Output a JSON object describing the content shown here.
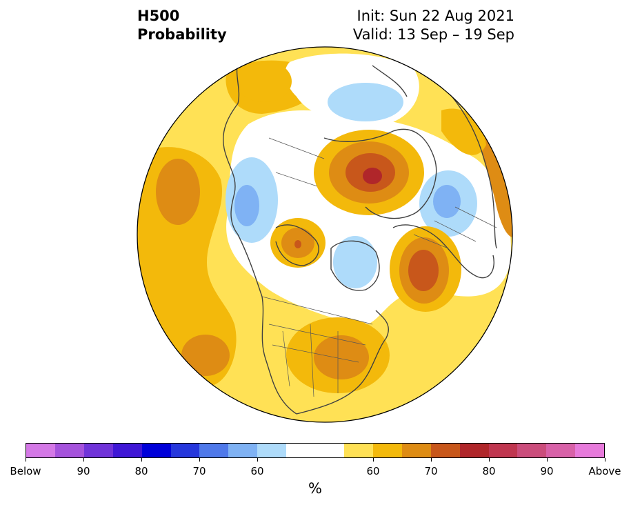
{
  "header": {
    "variable": "H500",
    "product": "Probability",
    "init": "Init: Sun 22 Aug 2021",
    "valid": "Valid: 13 Sep – 19 Sep"
  },
  "colorbar": {
    "unit": "%",
    "colors": [
      "#d478e6",
      "#a552dc",
      "#7033d9",
      "#3f17d6",
      "#0000d9",
      "#2637dc",
      "#4f79ea",
      "#7fb2f4",
      "#aedbfa",
      "#ffffff",
      "#ffffff",
      "#ffe155",
      "#f3b90b",
      "#de8c14",
      "#c8571b",
      "#b0262a",
      "#c03650",
      "#cb4d7c",
      "#d861a8",
      "#e77adb"
    ],
    "labels": [
      {
        "text": "Below",
        "idx": 0
      },
      {
        "text": "90",
        "idx": 2
      },
      {
        "text": "80",
        "idx": 4
      },
      {
        "text": "70",
        "idx": 6
      },
      {
        "text": "60",
        "idx": 8
      },
      {
        "text": "60",
        "idx": 12
      },
      {
        "text": "70",
        "idx": 14
      },
      {
        "text": "80",
        "idx": 16
      },
      {
        "text": "90",
        "idx": 18
      },
      {
        "text": "Above",
        "idx": 20
      }
    ]
  }
}
